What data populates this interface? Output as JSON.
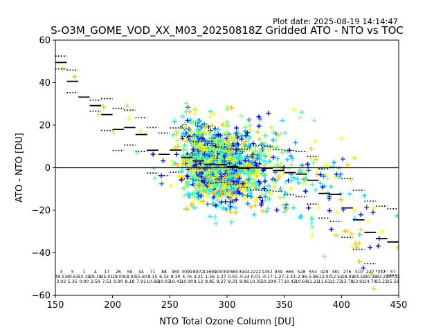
{
  "chart_data": {
    "type": "scatter",
    "title": "S-O3M_GOME_VOD_XX_M03_20250818Z Gridded ATO - NTO vs TOC",
    "subtitle": "Plot date: 2025-08-19 14:14:47",
    "xlabel": "NTO Total Ozone Column [DU]",
    "ylabel": "ATO - NTO [DU]",
    "xlim": [
      150,
      450
    ],
    "ylim": [
      -60,
      60
    ],
    "x_ticks": [
      150,
      200,
      250,
      300,
      350,
      400,
      450
    ],
    "y_ticks": [
      -60,
      -40,
      -20,
      0,
      20,
      40,
      60
    ],
    "x_tick_labels": [
      "150",
      "200",
      "250",
      "300",
      "350",
      "400",
      "450"
    ],
    "y_tick_labels": [
      "−60",
      "−40",
      "−20",
      "0",
      "20",
      "40",
      "60"
    ],
    "zero_line": 0,
    "grid": false,
    "marker": "+",
    "colors": [
      "#0000ff",
      "#0080ff",
      "#00e5ff",
      "#40ffc0",
      "#80ff80",
      "#c0ff40",
      "#ffff00",
      "#ffc000"
    ],
    "bins": [
      {
        "x": 155,
        "mean": 49.5,
        "std": 3.0,
        "n": "3",
        "mean_label": "49.51",
        "std_label": "3.02"
      },
      {
        "x": 165,
        "mean": 40.6,
        "std": 5.3,
        "n": "5",
        "mean_label": "40.63",
        "std_label": "5.35"
      },
      {
        "x": 175,
        "mean": 33.2,
        "std": 0.0,
        "n": "1",
        "mean_label": "33.19",
        "std_label": "0.00"
      },
      {
        "x": 185,
        "mean": 29.2,
        "std": 2.6,
        "n": "4",
        "mean_label": "29.18",
        "std_label": "2.59"
      },
      {
        "x": 195,
        "mean": 25.0,
        "std": 7.5,
        "n": "17",
        "mean_label": "25.01",
        "std_label": "7.51"
      },
      {
        "x": 205,
        "mean": 18.0,
        "std": 9.9,
        "n": "26",
        "mean_label": "18.00",
        "std_label": "9.90"
      },
      {
        "x": 215,
        "mean": 18.9,
        "std": 8.2,
        "n": "50",
        "mean_label": "18.93",
        "std_label": "8.18"
      },
      {
        "x": 225,
        "mean": 15.6,
        "std": 7.9,
        "n": "94",
        "mean_label": "15.60",
        "std_label": "7.91"
      },
      {
        "x": 235,
        "mean": 8.2,
        "std": 10.7,
        "n": "71",
        "mean_label": "8.15",
        "std_label": "10.68"
      },
      {
        "x": 245,
        "mean": 6.3,
        "std": 10.0,
        "n": "88",
        "mean_label": "6.32",
        "std_label": "10.03"
      },
      {
        "x": 255,
        "mean": 8.3,
        "std": 10.4,
        "n": "450",
        "mean_label": "8.30",
        "std_label": "10.41"
      },
      {
        "x": 265,
        "mean": 4.8,
        "std": 10.0,
        "n": "3099",
        "mean_label": "4.76",
        "std_label": "10.00"
      },
      {
        "x": 275,
        "mean": 3.2,
        "std": 9.1,
        "n": "8972",
        "mean_label": "3.21",
        "std_label": "9.12"
      },
      {
        "x": 285,
        "mean": 1.6,
        "std": 8.9,
        "n": "11699",
        "mean_label": "1.56",
        "std_label": "8.85"
      },
      {
        "x": 295,
        "mean": 1.4,
        "std": 8.3,
        "n": "10035",
        "mean_label": "1.37",
        "std_label": "8.27"
      },
      {
        "x": 305,
        "mean": 0.5,
        "std": 8.3,
        "n": "7860",
        "mean_label": "0.50",
        "std_label": "8.31"
      },
      {
        "x": 315,
        "mean": -0.2,
        "std": 9.0,
        "n": "3944",
        "mean_label": "-0.24",
        "std_label": "8.96"
      },
      {
        "x": 325,
        "mean": 0.0,
        "std": 10.4,
        "n": "2222",
        "mean_label": "0.01",
        "std_label": "10.35"
      },
      {
        "x": 335,
        "mean": -0.2,
        "std": 10.3,
        "n": "1452",
        "mean_label": "-0.17",
        "std_label": "10.29"
      },
      {
        "x": 345,
        "mean": -1.3,
        "std": 9.8,
        "n": "939",
        "mean_label": "-1.27",
        "std_label": "9.77"
      },
      {
        "x": 355,
        "mean": -2.3,
        "std": 10.4,
        "n": "665",
        "mean_label": "-2.33",
        "std_label": "10.42"
      },
      {
        "x": 365,
        "mean": -3.0,
        "std": 10.6,
        "n": "528",
        "mean_label": "-2.96",
        "std_label": "10.64"
      },
      {
        "x": 375,
        "mean": -5.9,
        "std": 11.2,
        "n": "553",
        "mean_label": "-5.86",
        "std_label": "11.21"
      },
      {
        "x": 385,
        "mean": -12.1,
        "std": 11.6,
        "n": "429",
        "mean_label": "-12.07",
        "std_label": "11.61"
      },
      {
        "x": 395,
        "mean": -12.5,
        "std": 12.7,
        "n": "381",
        "mean_label": "-12.52",
        "std_label": "12.73"
      },
      {
        "x": 405,
        "mean": -18.9,
        "std": 13.8,
        "n": "276",
        "mean_label": "-18.93",
        "std_label": "13.78"
      },
      {
        "x": 415,
        "mean": -24.5,
        "std": 13.9,
        "n": "310",
        "mean_label": "-24.52",
        "std_label": "13.91"
      },
      {
        "x": 425,
        "mean": -30.4,
        "std": 14.7,
        "n": "227",
        "mean_label": "-30.38",
        "std_label": "14.70"
      },
      {
        "x": 435,
        "mean": -33.3,
        "std": 15.2,
        "n": "112",
        "mean_label": "-33.29",
        "std_label": "15.22"
      },
      {
        "x": 445,
        "mean": -34.9,
        "std": 15.6,
        "n": "57",
        "mean_label": "-34.92",
        "std_label": "15.59"
      }
    ]
  }
}
